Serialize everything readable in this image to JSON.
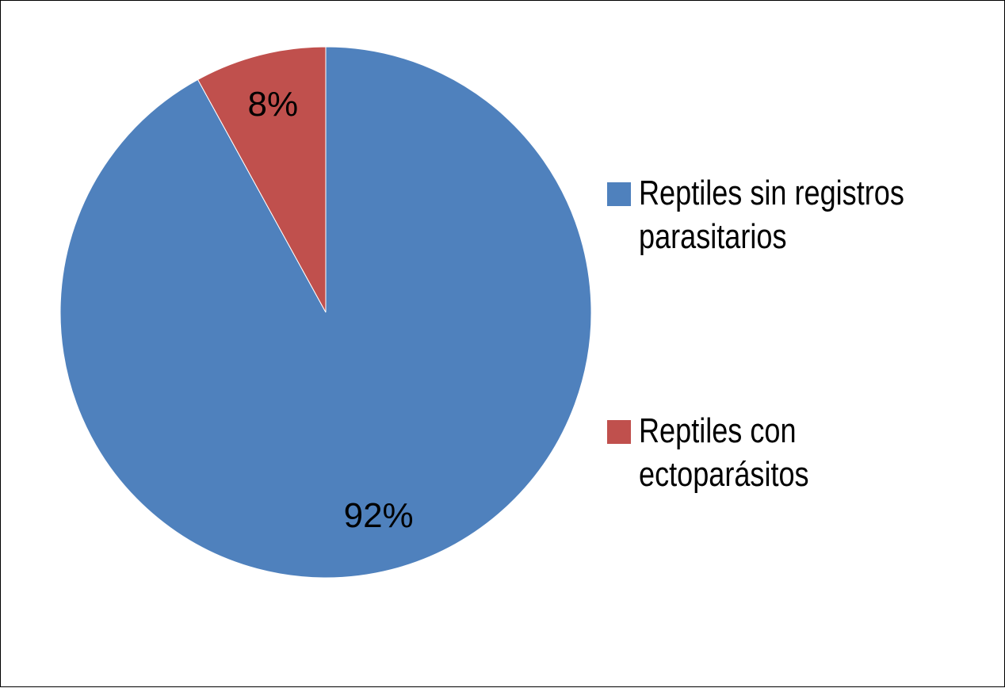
{
  "chart_data": {
    "type": "pie",
    "categories": [
      "Reptiles sin registros parasitarios",
      "Reptiles con ectoparásitos"
    ],
    "values": [
      92,
      8
    ],
    "value_labels": [
      "92%",
      "8%"
    ],
    "colors": [
      "#4f81bd",
      "#c0504d"
    ],
    "legend": "right"
  }
}
